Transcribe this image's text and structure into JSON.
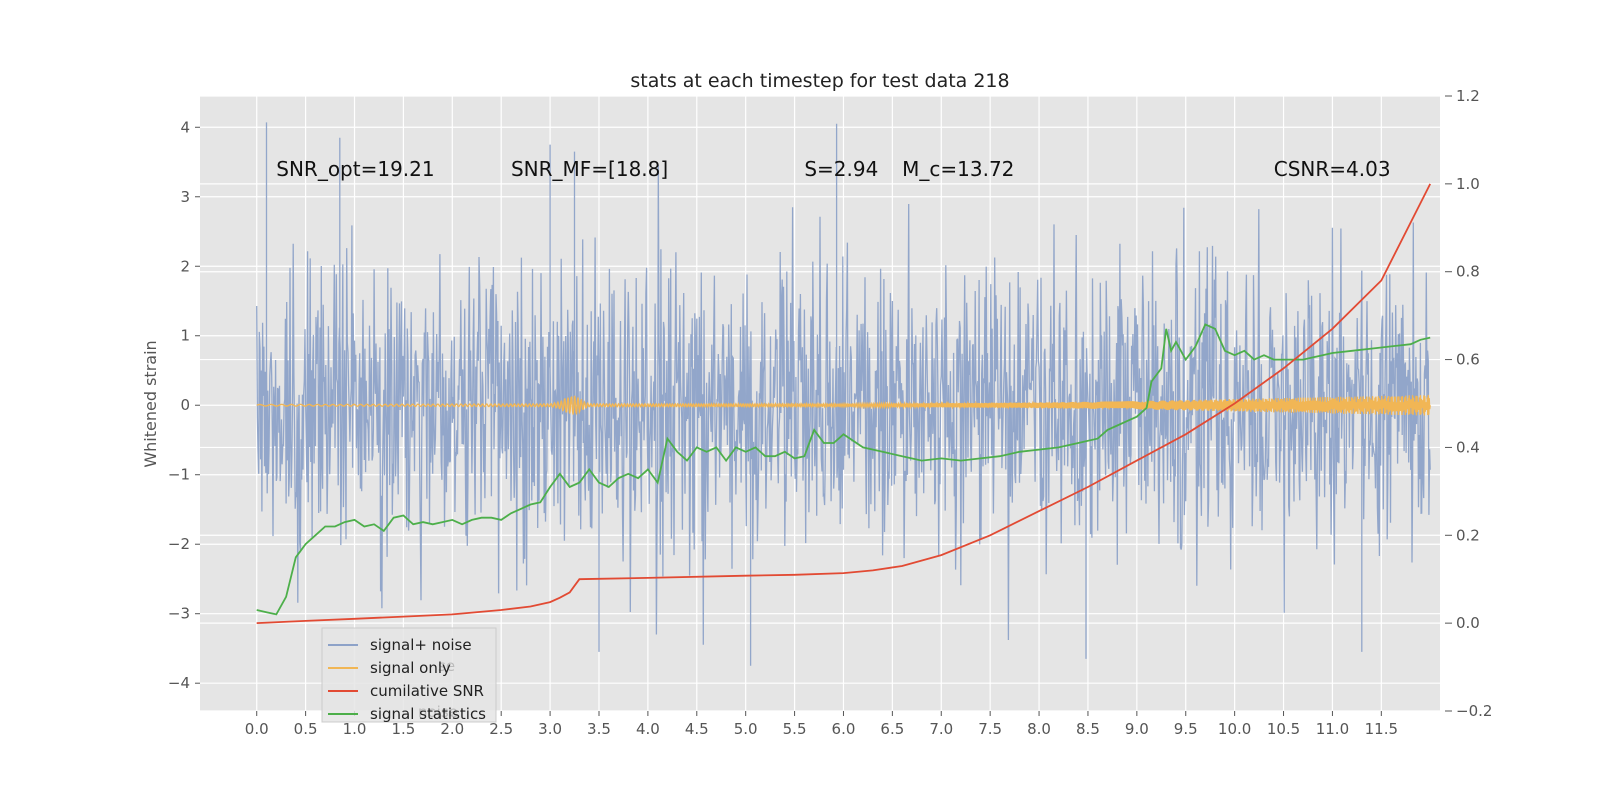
{
  "chart_data": {
    "type": "line",
    "title": "stats at each timestep for test data 218",
    "xlabel": "",
    "ylabel": "Whitened strain",
    "xlim": [
      -0.58,
      12.1
    ],
    "ylim": [
      -4.4,
      4.45
    ],
    "y2lim": [
      -0.2,
      1.2
    ],
    "x_ticks": [
      "0.0",
      "0.5",
      "1.0",
      "1.5",
      "2.0",
      "2.5",
      "3.0",
      "3.5",
      "4.0",
      "4.5",
      "5.0",
      "5.5",
      "6.0",
      "6.5",
      "7.0",
      "7.5",
      "8.0",
      "8.5",
      "9.0",
      "9.5",
      "10.0",
      "10.5",
      "11.0",
      "11.5"
    ],
    "y_ticks": [
      "4",
      "3",
      "2",
      "1",
      "0",
      "−1",
      "−2",
      "−3",
      "−4"
    ],
    "y2_ticks": [
      "1.2",
      "1.0",
      "0.8",
      "0.6",
      "0.4",
      "0.2",
      "0.0",
      "−0.2"
    ],
    "annotations": [
      {
        "id": "snr-opt",
        "text": "SNR_opt=19.21",
        "x": 0.2,
        "y": 3.3
      },
      {
        "id": "snr-mf",
        "text": "SNR_MF=[18.8]",
        "x": 2.6,
        "y": 3.3
      },
      {
        "id": "s-val",
        "text": "S=2.94",
        "x": 5.6,
        "y": 3.3
      },
      {
        "id": "mc-val",
        "text": "M_c=13.72",
        "x": 6.6,
        "y": 3.3
      },
      {
        "id": "csnr",
        "text": "CSNR=4.03",
        "x": 10.4,
        "y": 3.3
      }
    ],
    "legend": {
      "location": "lower-left",
      "entries": [
        {
          "label": "signal+ noise",
          "color": "#8da2c8"
        },
        {
          "label": "signal only",
          "color": "#f1b655"
        },
        {
          "label": "cumilative SNR",
          "color": "#e24a33"
        },
        {
          "label": "signal statistics",
          "color": "#4daf4a"
        }
      ],
      "ghost_text": [
        "se",
        "noise"
      ]
    },
    "series": [
      {
        "name": "signal+ noise",
        "axis": "left",
        "color": "#8da2c8",
        "description": "whitened strain noise band, amplitude ~ ±2 with spikes to ±4",
        "x_range": [
          0.0,
          12.0
        ],
        "envelope_outer": [
          -3.6,
          4.1
        ],
        "envelope_dense": [
          -2.3,
          2.3
        ],
        "outliers": [
          {
            "x": 0.1,
            "y": 4.07
          },
          {
            "x": 5.93,
            "y": 4.05
          },
          {
            "x": 0.85,
            "y": 3.85
          },
          {
            "x": 3.0,
            "y": 3.75
          },
          {
            "x": 5.05,
            "y": -3.75
          },
          {
            "x": 8.48,
            "y": -3.65
          },
          {
            "x": 11.3,
            "y": -3.55
          },
          {
            "x": 3.5,
            "y": -3.55
          },
          {
            "x": 3.25,
            "y": 3.65
          }
        ]
      },
      {
        "name": "signal only",
        "axis": "left",
        "color": "#f1b655",
        "description": "injected chirp signal, near zero, growing toward end",
        "x": [
          0.0,
          3.0,
          3.1,
          3.15,
          3.2,
          3.25,
          3.3,
          3.35,
          3.4,
          6.0,
          8.0,
          9.0,
          10.0,
          11.0,
          12.0
        ],
        "amplitude": [
          0.01,
          0.02,
          0.05,
          0.1,
          0.12,
          0.14,
          0.1,
          0.05,
          0.02,
          0.02,
          0.04,
          0.06,
          0.09,
          0.12,
          0.15
        ]
      },
      {
        "name": "cumilative SNR",
        "axis": "right",
        "color": "#e24a33",
        "x": [
          0.0,
          0.5,
          1.0,
          1.5,
          2.0,
          2.5,
          2.8,
          3.0,
          3.1,
          3.2,
          3.25,
          3.3,
          3.5,
          4.0,
          5.0,
          5.5,
          6.0,
          6.3,
          6.6,
          7.0,
          7.5,
          8.0,
          8.5,
          9.0,
          9.5,
          10.0,
          10.5,
          11.0,
          11.5,
          12.0
        ],
        "values": [
          0.0,
          0.005,
          0.01,
          0.015,
          0.02,
          0.03,
          0.038,
          0.048,
          0.058,
          0.07,
          0.085,
          0.1,
          0.101,
          0.103,
          0.108,
          0.11,
          0.114,
          0.12,
          0.13,
          0.155,
          0.2,
          0.255,
          0.31,
          0.37,
          0.43,
          0.5,
          0.58,
          0.67,
          0.78,
          1.0
        ]
      },
      {
        "name": "signal statistics",
        "axis": "right",
        "color": "#4daf4a",
        "x": [
          0.0,
          0.1,
          0.2,
          0.3,
          0.4,
          0.5,
          0.6,
          0.7,
          0.8,
          0.9,
          1.0,
          1.1,
          1.2,
          1.3,
          1.4,
          1.5,
          1.6,
          1.7,
          1.8,
          1.9,
          2.0,
          2.1,
          2.2,
          2.3,
          2.4,
          2.5,
          2.6,
          2.7,
          2.8,
          2.9,
          3.0,
          3.1,
          3.2,
          3.3,
          3.4,
          3.5,
          3.6,
          3.7,
          3.8,
          3.9,
          4.0,
          4.1,
          4.2,
          4.3,
          4.4,
          4.5,
          4.6,
          4.7,
          4.8,
          4.9,
          5.0,
          5.1,
          5.2,
          5.3,
          5.4,
          5.5,
          5.6,
          5.7,
          5.8,
          5.9,
          6.0,
          6.2,
          6.4,
          6.6,
          6.8,
          7.0,
          7.2,
          7.4,
          7.6,
          7.8,
          8.0,
          8.2,
          8.4,
          8.6,
          8.7,
          8.8,
          8.9,
          9.0,
          9.1,
          9.15,
          9.25,
          9.3,
          9.35,
          9.4,
          9.5,
          9.6,
          9.7,
          9.8,
          9.9,
          10.0,
          10.1,
          10.2,
          10.3,
          10.4,
          10.5,
          10.6,
          10.7,
          10.8,
          10.9,
          11.0,
          11.2,
          11.4,
          11.6,
          11.8,
          11.9,
          12.0
        ],
        "values": [
          0.03,
          0.025,
          0.02,
          0.06,
          0.15,
          0.18,
          0.2,
          0.22,
          0.22,
          0.23,
          0.235,
          0.22,
          0.225,
          0.21,
          0.24,
          0.245,
          0.225,
          0.23,
          0.225,
          0.23,
          0.235,
          0.225,
          0.235,
          0.24,
          0.24,
          0.235,
          0.25,
          0.26,
          0.27,
          0.275,
          0.31,
          0.34,
          0.31,
          0.32,
          0.35,
          0.32,
          0.31,
          0.33,
          0.34,
          0.33,
          0.35,
          0.32,
          0.42,
          0.39,
          0.37,
          0.4,
          0.39,
          0.4,
          0.37,
          0.4,
          0.39,
          0.4,
          0.38,
          0.38,
          0.39,
          0.375,
          0.38,
          0.44,
          0.41,
          0.41,
          0.43,
          0.4,
          0.39,
          0.38,
          0.37,
          0.375,
          0.37,
          0.375,
          0.38,
          0.39,
          0.395,
          0.4,
          0.41,
          0.42,
          0.44,
          0.45,
          0.46,
          0.47,
          0.49,
          0.55,
          0.58,
          0.67,
          0.62,
          0.64,
          0.6,
          0.63,
          0.68,
          0.67,
          0.62,
          0.61,
          0.62,
          0.6,
          0.61,
          0.6,
          0.6,
          0.6,
          0.6,
          0.605,
          0.61,
          0.615,
          0.62,
          0.625,
          0.63,
          0.635,
          0.645,
          0.65
        ]
      }
    ]
  }
}
